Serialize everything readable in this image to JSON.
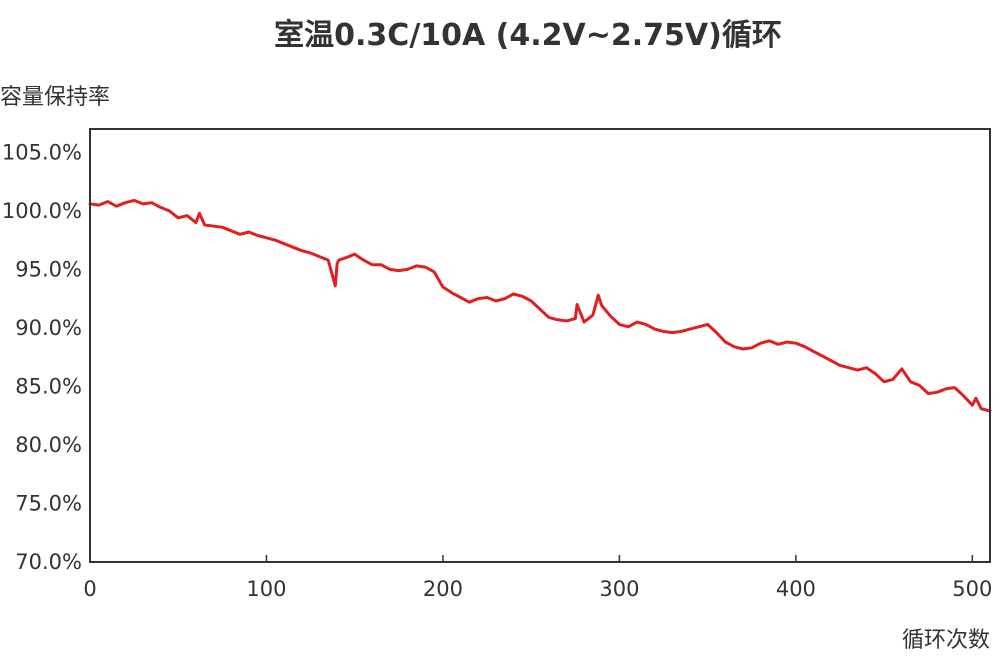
{
  "chart_data": {
    "type": "line",
    "title": "室温0.3C/10A (4.2V~2.75V)循环",
    "ylabel": "容量保持率",
    "xlabel": "循环次数",
    "xlim": [
      0,
      510
    ],
    "ylim": [
      70,
      107.0
    ],
    "x_ticks": [
      0,
      100,
      200,
      300,
      400,
      500
    ],
    "x_tick_labels": [
      "0",
      "100",
      "200",
      "300",
      "400",
      "500"
    ],
    "y_ticks": [
      70,
      75,
      80,
      85,
      90,
      95,
      100,
      105
    ],
    "y_tick_labels": [
      "70.0%",
      "75.0%",
      "80.0%",
      "85.0%",
      "90.0%",
      "95.0%",
      "100.0%",
      "105.0%"
    ],
    "grid": false,
    "legend": "none",
    "colors": {
      "line": "#e02020",
      "frame": "#333333"
    },
    "series": [
      {
        "x": [
          0,
          5,
          10,
          15,
          20,
          25,
          30,
          35,
          40,
          45,
          50,
          55,
          60,
          62,
          65,
          70,
          75,
          80,
          85,
          90,
          95,
          100,
          105,
          110,
          115,
          120,
          125,
          130,
          135,
          139,
          140,
          141,
          145,
          150,
          155,
          160,
          165,
          170,
          175,
          180,
          185,
          190,
          195,
          200,
          205,
          210,
          215,
          220,
          225,
          230,
          235,
          240,
          245,
          250,
          255,
          260,
          265,
          270,
          275,
          276,
          280,
          285,
          288,
          290,
          295,
          300,
          305,
          310,
          315,
          320,
          325,
          330,
          335,
          340,
          345,
          350,
          355,
          360,
          365,
          370,
          375,
          380,
          385,
          390,
          395,
          400,
          405,
          410,
          415,
          420,
          425,
          430,
          435,
          440,
          445,
          450,
          455,
          460,
          465,
          470,
          475,
          480,
          485,
          490,
          495,
          500,
          502,
          505,
          510
        ],
        "y": [
          100.6,
          100.5,
          100.8,
          100.4,
          100.7,
          100.9,
          100.6,
          100.7,
          100.3,
          100.0,
          99.4,
          99.6,
          99.0,
          99.8,
          98.8,
          98.7,
          98.6,
          98.3,
          98.0,
          98.2,
          97.9,
          97.7,
          97.5,
          97.2,
          96.9,
          96.6,
          96.4,
          96.1,
          95.8,
          93.6,
          95.5,
          95.8,
          96.0,
          96.3,
          95.8,
          95.4,
          95.4,
          95.0,
          94.9,
          95.0,
          95.3,
          95.2,
          94.8,
          93.5,
          93.0,
          92.6,
          92.2,
          92.5,
          92.6,
          92.3,
          92.5,
          92.9,
          92.7,
          92.3,
          91.6,
          90.9,
          90.7,
          90.6,
          90.8,
          92.0,
          90.5,
          91.1,
          92.8,
          91.9,
          91.0,
          90.3,
          90.1,
          90.5,
          90.3,
          89.9,
          89.7,
          89.6,
          89.7,
          89.9,
          90.1,
          90.3,
          89.6,
          88.8,
          88.4,
          88.2,
          88.3,
          88.7,
          88.9,
          88.6,
          88.8,
          88.7,
          88.4,
          88.0,
          87.6,
          87.2,
          86.8,
          86.6,
          86.4,
          86.6,
          86.1,
          85.4,
          85.6,
          86.5,
          85.4,
          85.1,
          84.4,
          84.5,
          84.8,
          84.9,
          84.2,
          83.4,
          84.0,
          83.1,
          82.9
        ]
      }
    ]
  }
}
